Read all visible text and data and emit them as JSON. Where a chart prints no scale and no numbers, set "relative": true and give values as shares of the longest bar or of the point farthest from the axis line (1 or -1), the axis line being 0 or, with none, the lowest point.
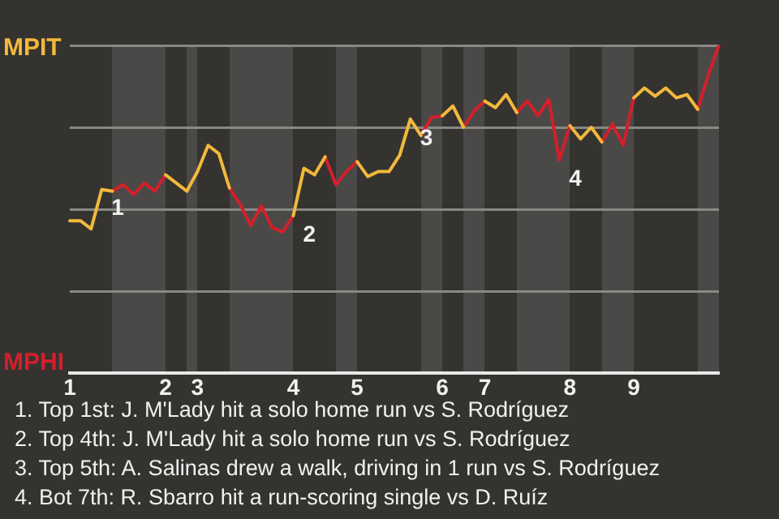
{
  "chart_data": {
    "type": "line",
    "relative": true,
    "categories": [
      "1",
      null,
      null,
      null,
      null,
      null,
      null,
      null,
      null,
      "2",
      null,
      null,
      "3",
      null,
      null,
      null,
      null,
      null,
      null,
      null,
      null,
      "4",
      null,
      null,
      null,
      null,
      null,
      "5",
      null,
      null,
      null,
      null,
      null,
      null,
      null,
      "6",
      null,
      null,
      null,
      "7",
      null,
      null,
      null,
      null,
      null,
      null,
      null,
      "8",
      null,
      null,
      null,
      null,
      null,
      "9",
      null,
      null,
      null,
      null,
      null,
      null,
      null,
      null
    ],
    "series": [
      {
        "color": "#f2b93b",
        "values": [
          0.465,
          0.465,
          0.44,
          0.56,
          0.555,
          null,
          null,
          null,
          null,
          0.605,
          0.58,
          0.555,
          0.615,
          0.695,
          0.67,
          0.565,
          null,
          null,
          null,
          null,
          null,
          0.48,
          0.625,
          0.605,
          0.66,
          null,
          null,
          0.645,
          0.6,
          0.615,
          0.615,
          0.665,
          0.775,
          0.725,
          null,
          0.785,
          0.815,
          0.75,
          null,
          0.83,
          0.81,
          0.85,
          0.795,
          null,
          null,
          null,
          null,
          0.755,
          0.715,
          0.75,
          0.705,
          null,
          null,
          0.84,
          0.87,
          0.845,
          0.87,
          0.84,
          0.85,
          0.805,
          null,
          null
        ]
      },
      {
        "color": "#d41f2b",
        "values": [
          null,
          null,
          null,
          null,
          0.555,
          0.575,
          0.545,
          0.58,
          0.555,
          0.605,
          null,
          null,
          null,
          null,
          null,
          0.565,
          0.515,
          0.45,
          0.51,
          0.445,
          0.43,
          0.48,
          null,
          null,
          0.66,
          0.575,
          0.615,
          0.645,
          null,
          null,
          null,
          null,
          null,
          0.725,
          0.78,
          0.785,
          null,
          0.75,
          0.8,
          0.83,
          null,
          null,
          0.795,
          0.83,
          0.785,
          0.835,
          0.65,
          0.755,
          null,
          null,
          0.705,
          0.76,
          0.695,
          0.84,
          null,
          null,
          null,
          null,
          null,
          0.805,
          0.91,
          1
        ]
      }
    ],
    "grid": "y",
    "legend": false,
    "marker": "none",
    "line_style": "solid",
    "annotations": [
      "MPIT",
      "MPHI",
      "1",
      "2",
      "3",
      "4",
      "1. Top 1st: J. M'Lady hit a solo home run vs S. Rodríguez",
      "2. Top 4th: J. M'Lady hit a solo home run vs S. Rodríguez",
      "3. Top 5th: A. Salinas drew a walk, driving in 1 run vs S. Rodríguez",
      "4. Bot 7th: R. Sbarro hit a run-scoring single vs D. Ruíz"
    ]
  }
}
